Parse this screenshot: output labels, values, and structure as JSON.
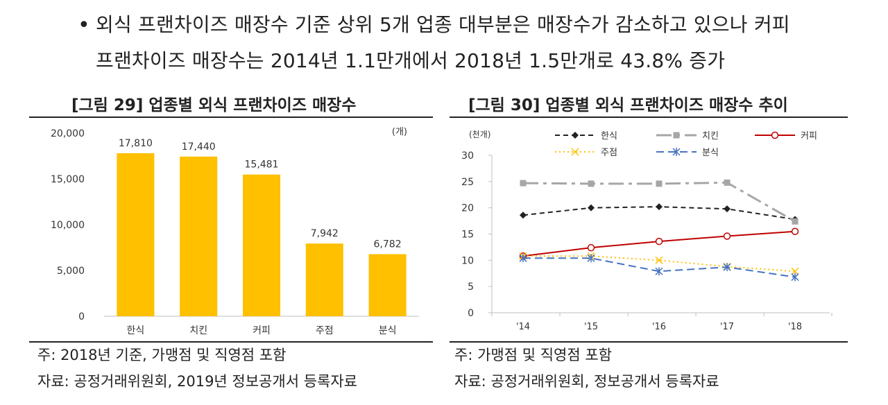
{
  "summary": {
    "bullet": "•",
    "line1": "외식 프랜차이즈 매장수 기준 상위 5개 업종 대부분은 매장수가 감소하고 있으나 커피",
    "line2": "프랜차이즈 매장수는 2014년 1.1만개에서 2018년 1.5만개로 43.8% 증가"
  },
  "figure29": {
    "title": "[그림 29] 업종별 외식 프랜차이즈 매장수",
    "note": "주: 2018년 기준, 가맹점 및 직영점 포함",
    "source": "자료: 공정거래위원회, 2019년 정보공개서 등록자료"
  },
  "figure30": {
    "title": "[그림 30] 업종별 외식 프랜차이즈 매장수 추이",
    "note": "주: 가맹점 및 직영점 포함",
    "source": "자료: 공정거래위원회, 정보공개서 등록자료"
  },
  "chart_data": [
    {
      "type": "bar",
      "title": "[그림 29] 업종별 외식 프랜차이즈 매장수",
      "unit": "(개)",
      "categories": [
        "한식",
        "치킨",
        "커피",
        "주점",
        "분식"
      ],
      "values": [
        17810,
        17440,
        15481,
        7942,
        6782
      ],
      "value_labels": [
        "17,810",
        "17,440",
        "15,481",
        "7,942",
        "6,782"
      ],
      "ylim": [
        0,
        20000
      ],
      "yticks": [
        0,
        5000,
        10000,
        15000,
        20000
      ],
      "ytick_labels": [
        "0",
        "5,000",
        "10,000",
        "15,000",
        "20,000"
      ],
      "bar_color": "#FFC000"
    },
    {
      "type": "line",
      "title": "[그림 30] 업종별 외식 프랜차이즈 매장수 추이",
      "unit": "(천개)",
      "x": [
        "'14",
        "'15",
        "'16",
        "'17",
        "'18"
      ],
      "ylim": [
        0,
        30
      ],
      "yticks": [
        0,
        5,
        10,
        15,
        20,
        25,
        30
      ],
      "series": [
        {
          "name": "한식",
          "values": [
            18.6,
            20.0,
            20.2,
            19.8,
            17.8
          ],
          "color": "#222222",
          "dash": "7,5",
          "marker": "diamond"
        },
        {
          "name": "치킨",
          "values": [
            24.7,
            24.6,
            24.6,
            24.8,
            17.4
          ],
          "color": "#A6A6A6",
          "dash": "22,7,5,7",
          "marker": "square"
        },
        {
          "name": "커피",
          "values": [
            10.8,
            12.4,
            13.6,
            14.6,
            15.5
          ],
          "color": "#C00000",
          "dash": "",
          "marker": "circle"
        },
        {
          "name": "주점",
          "values": [
            10.8,
            10.8,
            10.0,
            8.8,
            7.9
          ],
          "color": "#FFC000",
          "dash": "2,4",
          "marker": "x"
        },
        {
          "name": "분식",
          "values": [
            10.4,
            10.4,
            7.9,
            8.7,
            6.8
          ],
          "color": "#4472C4",
          "dash": "11,6",
          "marker": "star"
        }
      ]
    }
  ]
}
